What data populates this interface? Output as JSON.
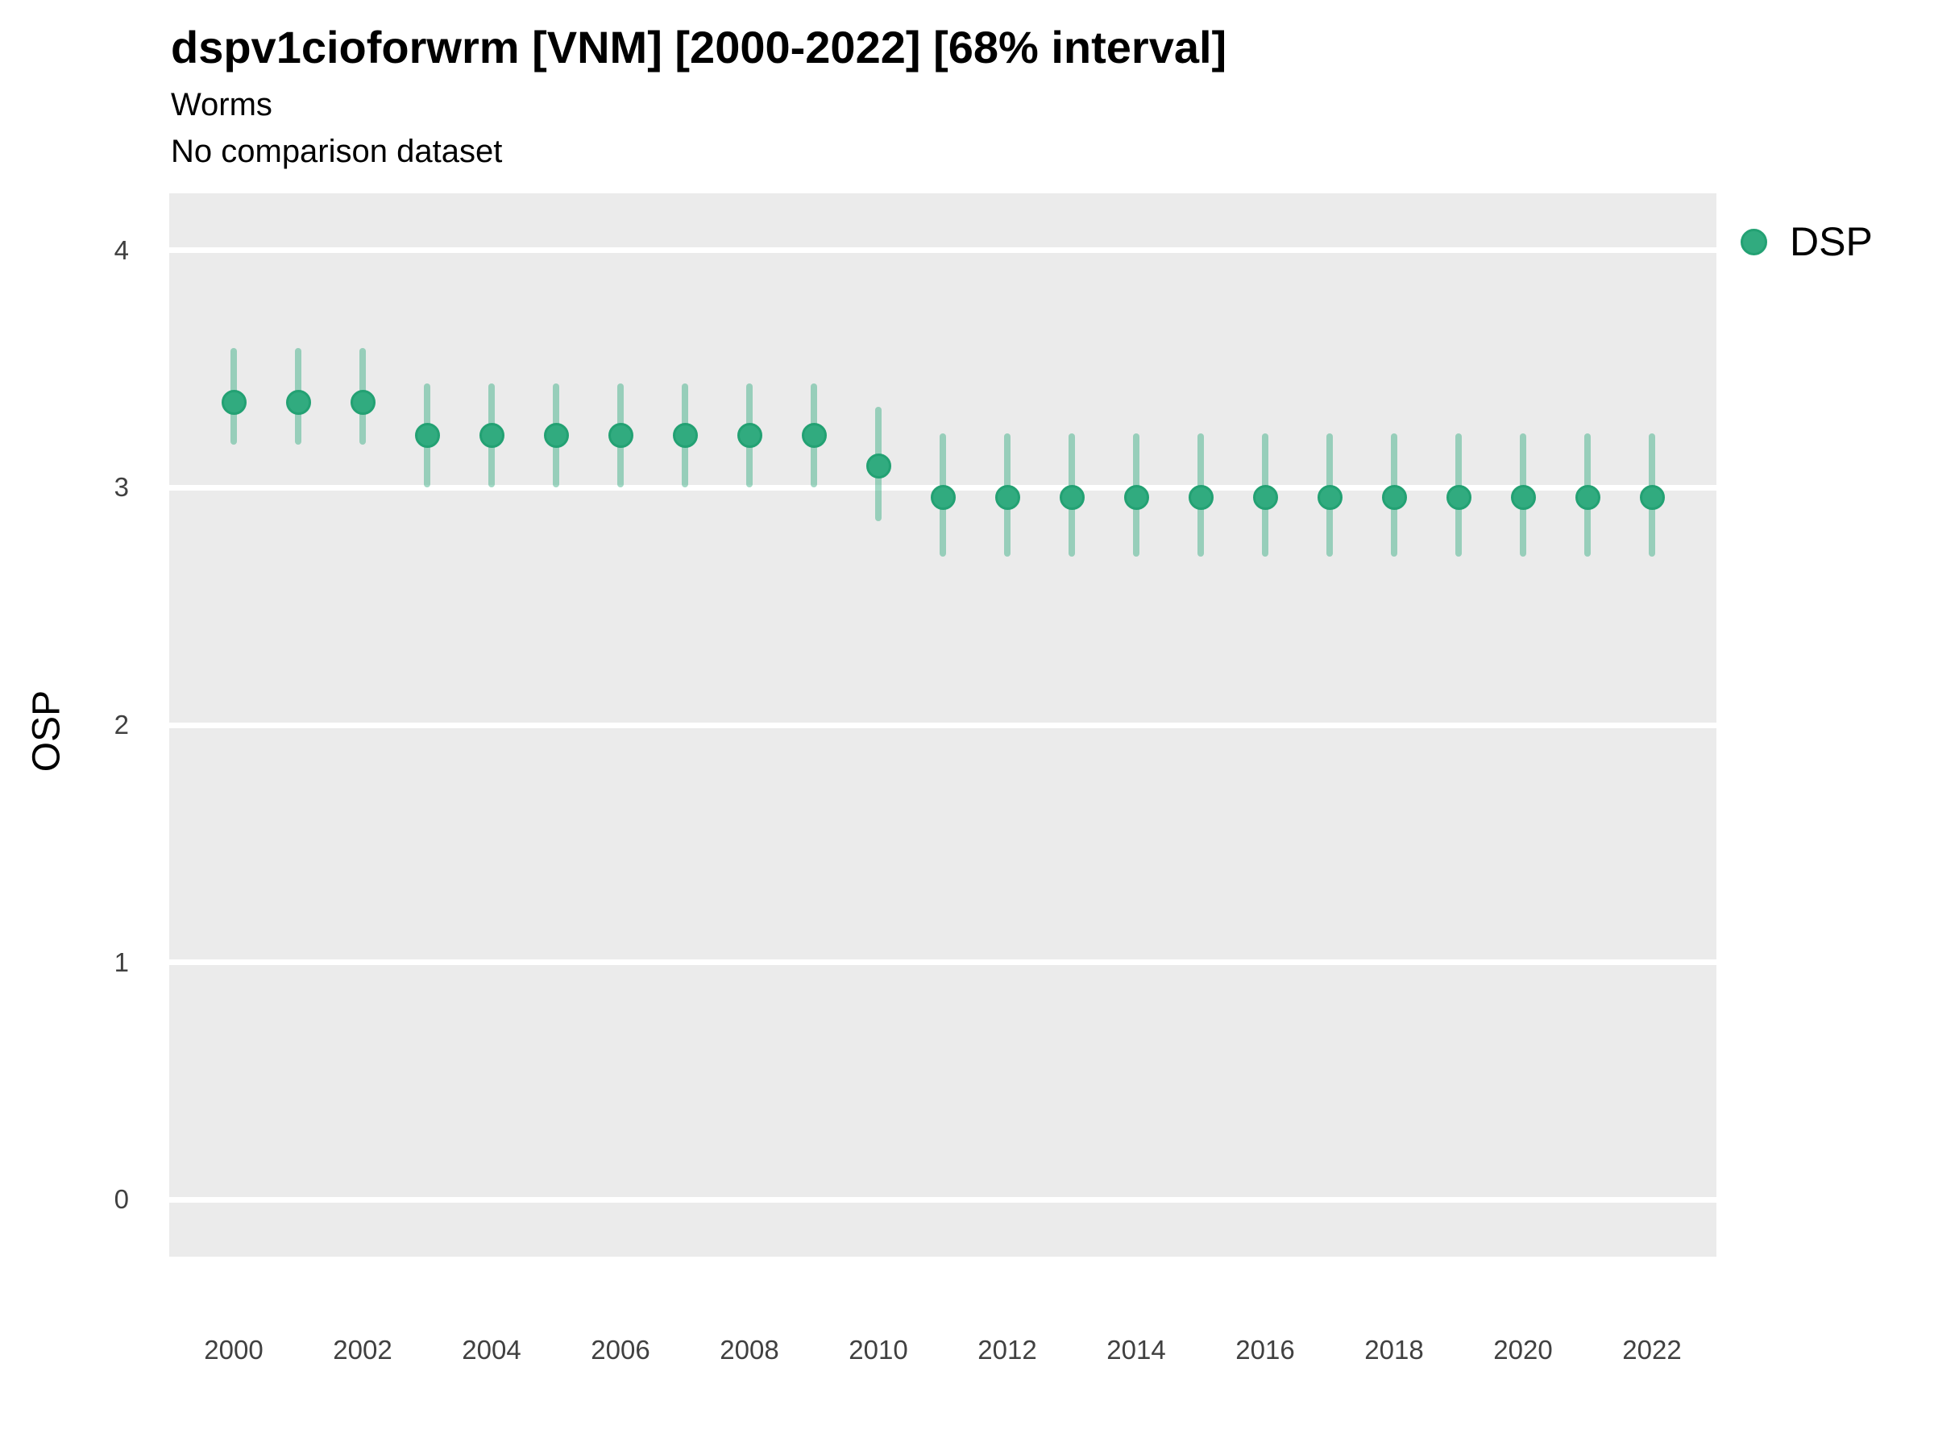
{
  "chart_data": {
    "type": "scatter",
    "subtype": "pointrange",
    "title": "dspv1cioforwrm [VNM] [2000-2022] [68% interval]",
    "subtitle": "Worms",
    "note": "No comparison dataset",
    "ylabel": "OSP",
    "xlabel": "",
    "x": [
      2000,
      2001,
      2002,
      2003,
      2004,
      2005,
      2006,
      2007,
      2008,
      2009,
      2010,
      2011,
      2012,
      2013,
      2014,
      2015,
      2016,
      2017,
      2018,
      2019,
      2020,
      2021,
      2022
    ],
    "series": [
      {
        "name": "DSP",
        "values": [
          3.36,
          3.36,
          3.36,
          3.22,
          3.22,
          3.22,
          3.22,
          3.22,
          3.22,
          3.22,
          3.09,
          2.96,
          2.96,
          2.96,
          2.96,
          2.96,
          2.96,
          2.96,
          2.96,
          2.96,
          2.96,
          2.96,
          2.96
        ],
        "lower_68": [
          3.18,
          3.18,
          3.18,
          3.0,
          3.0,
          3.0,
          3.0,
          3.0,
          3.0,
          3.0,
          2.86,
          2.71,
          2.71,
          2.71,
          2.71,
          2.71,
          2.71,
          2.71,
          2.71,
          2.71,
          2.71,
          2.71,
          2.71
        ],
        "upper_68": [
          3.59,
          3.59,
          3.59,
          3.44,
          3.44,
          3.44,
          3.44,
          3.44,
          3.44,
          3.44,
          3.34,
          3.23,
          3.23,
          3.23,
          3.23,
          3.23,
          3.23,
          3.23,
          3.23,
          3.23,
          3.23,
          3.23,
          3.23
        ]
      }
    ],
    "x_tick_labels": [
      "2000",
      "2002",
      "2004",
      "2006",
      "2008",
      "2010",
      "2012",
      "2014",
      "2016",
      "2018",
      "2020",
      "2022"
    ],
    "y_tick_labels": [
      "0",
      "1",
      "2",
      "3",
      "4"
    ],
    "y_ticks": [
      0,
      1,
      2,
      3,
      4
    ],
    "ylim": [
      -0.24,
      4.24
    ],
    "grid": "horizontal-major-only",
    "legend_position": "right",
    "legend": [
      {
        "label": "DSP"
      }
    ],
    "colors": {
      "point": "#31ab7f",
      "point_ring": "#23a173",
      "interval": "rgba(49,171,127,0.45)",
      "panel_bg": "#ebebeb",
      "gridline": "#ffffff",
      "tick_text": "#404040",
      "text": "#000000"
    }
  }
}
